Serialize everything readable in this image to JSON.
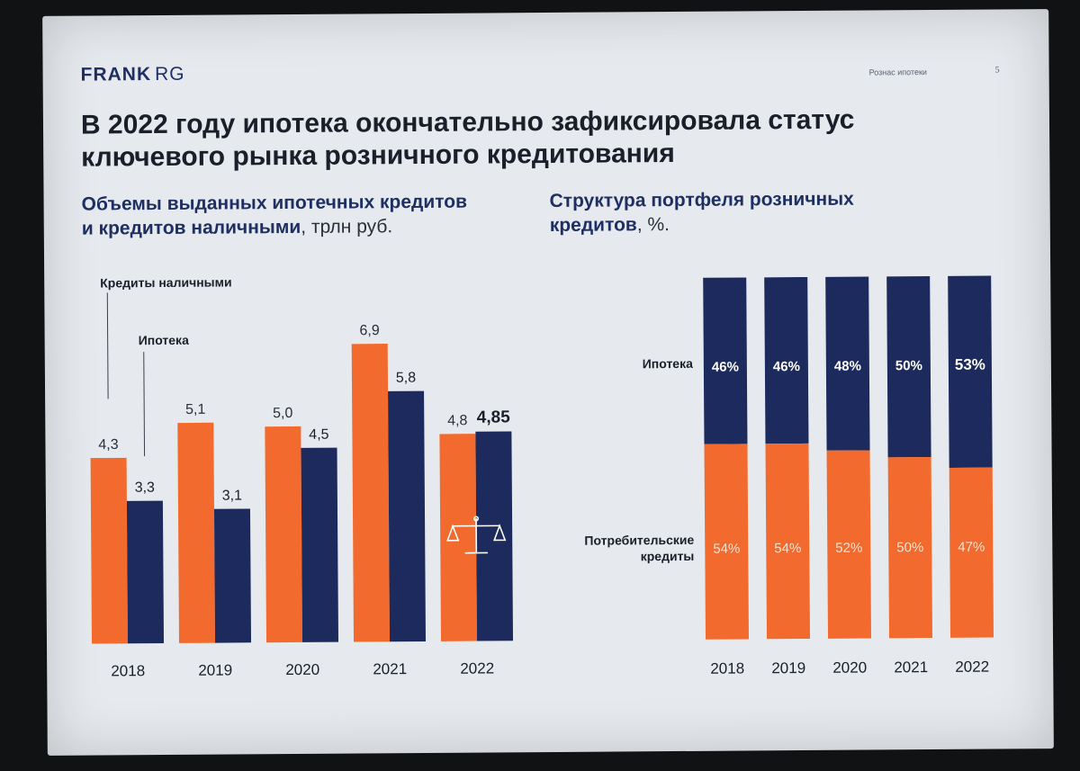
{
  "header": {
    "logo_brand": "FRANK",
    "logo_suffix": "RG",
    "section": "Рознас ипотеки",
    "page_number": "5"
  },
  "title": {
    "line1": "В 2022 году ипотека окончательно зафиксировала статус",
    "line2": "ключевого рынка розничного кредитования"
  },
  "left_chart": {
    "title_line1": "Объемы выданных ипотечных кредитов",
    "title_line2": "и кредитов наличными",
    "unit": ", трлн руб."
  },
  "right_chart": {
    "title_line1": "Структура портфеля розничных",
    "title_line2": "кредитов",
    "unit": ", %."
  },
  "colors": {
    "orange": "#f26a2e",
    "navy": "#1c2a5e",
    "slide_bg": "#e6eaee"
  },
  "chart_data": [
    {
      "type": "bar",
      "categories": [
        "2018",
        "2019",
        "2020",
        "2021",
        "2022"
      ],
      "series": [
        {
          "name": "Кредиты наличными",
          "color": "#f26a2e",
          "values": [
            4.3,
            5.1,
            5.0,
            6.9,
            4.8
          ],
          "labels": [
            "4,3",
            "5,1",
            "5,0",
            "6,9",
            "4,8"
          ]
        },
        {
          "name": "Ипотека",
          "color": "#1c2a5e",
          "values": [
            3.3,
            3.1,
            4.5,
            5.8,
            4.85
          ],
          "labels": [
            "3,3",
            "3,1",
            "4,5",
            "5,8",
            "4,85"
          ]
        }
      ],
      "highlight": {
        "series": 1,
        "index": 4
      },
      "annotation_icon": "scales-icon",
      "ylim": [
        0,
        7.5
      ],
      "grid": false,
      "legend": "top-left callouts"
    },
    {
      "type": "bar",
      "stacked": true,
      "percent": true,
      "categories": [
        "2018",
        "2019",
        "2020",
        "2021",
        "2022"
      ],
      "series": [
        {
          "name": "Ипотека",
          "color": "#1c2a5e",
          "values": [
            46,
            46,
            48,
            50,
            53
          ],
          "labels": [
            "46%",
            "46%",
            "48%",
            "50%",
            "53%"
          ]
        },
        {
          "name_line1": "Потребительские",
          "name_line2": "кредиты",
          "color": "#f26a2e",
          "values": [
            54,
            54,
            52,
            50,
            47
          ],
          "labels": [
            "54%",
            "54%",
            "52%",
            "50%",
            "47%"
          ]
        }
      ],
      "ylim": [
        0,
        100
      ],
      "grid": false,
      "legend": "left"
    }
  ]
}
